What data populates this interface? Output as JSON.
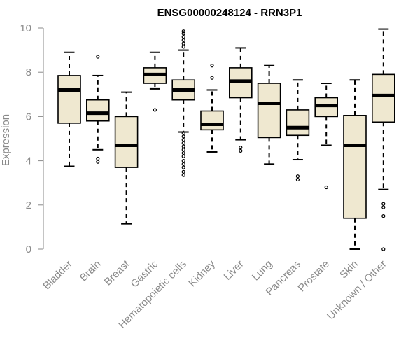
{
  "chart_data": {
    "type": "box",
    "title": "ENSG00000248124 - RRN3P1",
    "xlabel": "",
    "ylabel": "Expression",
    "ylim": [
      0,
      10
    ],
    "yticks": [
      0,
      2,
      4,
      6,
      8,
      10
    ],
    "grid": false,
    "colors": {
      "box_fill": "#efe8d0",
      "stroke": "#000000",
      "axis": "#8a8a8a"
    },
    "categories": [
      "Bladder",
      "Brain",
      "Breast",
      "Gastric",
      "Hematopoietic cells",
      "Kidney",
      "Liver",
      "Lung",
      "Pancreas",
      "Prostate",
      "Skin",
      "Unknown / Other"
    ],
    "boxes": [
      {
        "label": "Bladder",
        "whisker_low": 3.75,
        "q1": 5.7,
        "median": 7.2,
        "q3": 7.85,
        "whisker_high": 8.9,
        "outliers": []
      },
      {
        "label": "Brain",
        "whisker_low": 4.5,
        "q1": 5.8,
        "median": 6.15,
        "q3": 6.75,
        "whisker_high": 7.85,
        "outliers": [
          3.95,
          4.1,
          8.7
        ]
      },
      {
        "label": "Breast",
        "whisker_low": 1.15,
        "q1": 3.7,
        "median": 4.7,
        "q3": 6.0,
        "whisker_high": 7.1,
        "outliers": []
      },
      {
        "label": "Gastric",
        "whisker_low": 7.25,
        "q1": 7.5,
        "median": 7.9,
        "q3": 8.2,
        "whisker_high": 8.9,
        "outliers": [
          6.3
        ]
      },
      {
        "label": "Hematopoietic cells",
        "whisker_low": 5.3,
        "q1": 6.75,
        "median": 7.2,
        "q3": 7.65,
        "whisker_high": 9.0,
        "outliers": [
          3.35,
          3.5,
          3.7,
          3.85,
          4.0,
          4.2,
          4.35,
          4.5,
          4.65,
          4.8,
          4.95,
          5.1,
          5.25,
          9.15,
          9.3,
          9.45,
          9.6,
          9.75,
          9.85
        ]
      },
      {
        "label": "Kidney",
        "whisker_low": 4.4,
        "q1": 5.4,
        "median": 5.65,
        "q3": 6.25,
        "whisker_high": 7.2,
        "outliers": [
          7.75,
          8.3
        ]
      },
      {
        "label": "Liver",
        "whisker_low": 4.95,
        "q1": 6.85,
        "median": 7.6,
        "q3": 8.2,
        "whisker_high": 9.1,
        "outliers": [
          4.45,
          4.6
        ]
      },
      {
        "label": "Lung",
        "whisker_low": 3.85,
        "q1": 5.05,
        "median": 6.6,
        "q3": 7.5,
        "whisker_high": 8.3,
        "outliers": []
      },
      {
        "label": "Pancreas",
        "whisker_low": 4.05,
        "q1": 5.15,
        "median": 5.5,
        "q3": 6.3,
        "whisker_high": 7.65,
        "outliers": [
          3.15,
          3.3
        ]
      },
      {
        "label": "Prostate",
        "whisker_low": 4.7,
        "q1": 6.0,
        "median": 6.5,
        "q3": 6.85,
        "whisker_high": 7.5,
        "outliers": [
          2.8
        ]
      },
      {
        "label": "Skin",
        "whisker_low": 0.0,
        "q1": 1.4,
        "median": 4.7,
        "q3": 6.05,
        "whisker_high": 7.65,
        "outliers": []
      },
      {
        "label": "Unknown / Other",
        "whisker_low": 2.7,
        "q1": 5.75,
        "median": 6.95,
        "q3": 7.9,
        "whisker_high": 9.95,
        "outliers": [
          0.0,
          1.5,
          1.9,
          2.05
        ]
      }
    ]
  }
}
